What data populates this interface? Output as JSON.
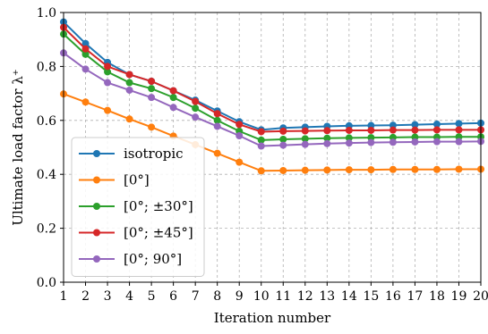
{
  "chart_data": {
    "type": "line",
    "xlabel": "Iteration number",
    "ylabel": "Ultimate load factor λ⁺",
    "xlim": [
      1,
      20
    ],
    "ylim": [
      0.0,
      1.0
    ],
    "x_ticks": [
      1,
      2,
      3,
      4,
      5,
      6,
      7,
      8,
      9,
      10,
      11,
      12,
      13,
      14,
      15,
      16,
      17,
      18,
      19,
      20
    ],
    "y_ticks": [
      "0.0",
      "0.2",
      "0.4",
      "0.6",
      "0.8",
      "1.0"
    ],
    "grid": true,
    "legend_position": "center-left",
    "x": [
      1,
      2,
      3,
      4,
      5,
      6,
      7,
      8,
      9,
      10,
      11,
      12,
      13,
      14,
      15,
      16,
      17,
      18,
      19,
      20
    ],
    "series": [
      {
        "name": "isotropic",
        "color": "#1f77b4",
        "values": [
          0.965,
          0.885,
          0.815,
          0.77,
          0.745,
          0.71,
          0.675,
          0.635,
          0.595,
          0.565,
          0.572,
          0.575,
          0.578,
          0.58,
          0.581,
          0.582,
          0.584,
          0.586,
          0.588,
          0.59
        ]
      },
      {
        "name": "[0°]",
        "color": "#ff7f0e",
        "values": [
          0.698,
          0.668,
          0.637,
          0.605,
          0.575,
          0.542,
          0.51,
          0.478,
          0.445,
          0.413,
          0.414,
          0.415,
          0.416,
          0.417,
          0.417,
          0.418,
          0.418,
          0.418,
          0.419,
          0.419
        ]
      },
      {
        "name": "[0°; ±30°]",
        "color": "#2ca02c",
        "values": [
          0.92,
          0.845,
          0.78,
          0.74,
          0.718,
          0.685,
          0.645,
          0.6,
          0.56,
          0.527,
          0.53,
          0.532,
          0.534,
          0.535,
          0.536,
          0.537,
          0.538,
          0.538,
          0.539,
          0.539
        ]
      },
      {
        "name": "[0°; ±45°]",
        "color": "#d62728",
        "values": [
          0.945,
          0.865,
          0.8,
          0.77,
          0.745,
          0.71,
          0.67,
          0.625,
          0.585,
          0.558,
          0.56,
          0.561,
          0.562,
          0.563,
          0.563,
          0.564,
          0.564,
          0.565,
          0.565,
          0.565
        ]
      },
      {
        "name": "[0°; 90°]",
        "color": "#9467bd",
        "values": [
          0.85,
          0.79,
          0.74,
          0.712,
          0.685,
          0.648,
          0.612,
          0.578,
          0.543,
          0.505,
          0.508,
          0.511,
          0.514,
          0.516,
          0.518,
          0.519,
          0.52,
          0.521,
          0.521,
          0.522
        ]
      }
    ]
  }
}
